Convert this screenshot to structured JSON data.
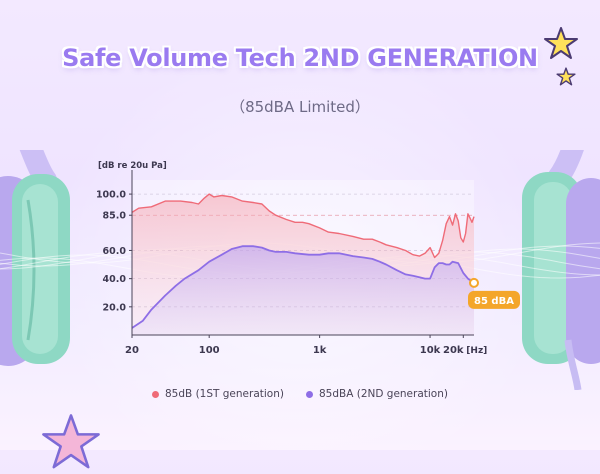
{
  "headline": "Safe Volume Tech 2ND GENERATION",
  "subheadline": "（85dBA Limited）",
  "callout": "85 dBA",
  "colors": {
    "accent_purple": "#9a7bf0",
    "series_1st": "#ef6b78",
    "series_2nd": "#8e6ee6",
    "callout_bg": "#f4a62a",
    "earcup_teal": "#8ed8c4",
    "earcup_purple": "#b7a6ee"
  },
  "icons": [
    "star-icon",
    "star-icon",
    "star-icon"
  ],
  "chart_data": {
    "type": "line",
    "ylabel": "[dB re 20u Pa]",
    "xlabel": "[Hz]",
    "x_scale": "log",
    "xlim": [
      20,
      25000
    ],
    "ylim": [
      0,
      110
    ],
    "x_ticks": [
      20,
      100,
      1000,
      10000,
      20000
    ],
    "x_tick_labels": [
      "20",
      "100",
      "1k",
      "10k",
      "20k"
    ],
    "y_ticks": [
      20,
      40,
      60,
      85,
      100
    ],
    "y_tick_labels": [
      "20.0",
      "40.0",
      "60.0",
      "85.0",
      "100.0"
    ],
    "grid": "horizontal dashed",
    "reference_line": 85,
    "legend_position": "bottom",
    "series": [
      {
        "name": "85dB (1ST generation)",
        "x": [
          20,
          23,
          30,
          40,
          55,
          70,
          80,
          90,
          100,
          110,
          130,
          160,
          200,
          250,
          300,
          350,
          400,
          500,
          600,
          700,
          800,
          1000,
          1200,
          1500,
          2000,
          2500,
          3000,
          3500,
          4000,
          5000,
          6000,
          7000,
          8000,
          9000,
          10000,
          11000,
          12000,
          13000,
          14000,
          15000,
          16000,
          17000,
          18000,
          19000,
          20000,
          21000,
          22000,
          23000,
          24000,
          25000
        ],
        "y": [
          87,
          90,
          91,
          95,
          95,
          94,
          93,
          97,
          100,
          98,
          99,
          98,
          95,
          94,
          93,
          88,
          85,
          82,
          80,
          80,
          79,
          76,
          73,
          72,
          70,
          68,
          68,
          66,
          64,
          62,
          60,
          57,
          56,
          58,
          62,
          55,
          58,
          67,
          79,
          84,
          78,
          86,
          81,
          69,
          66,
          72,
          86,
          83,
          80,
          84
        ]
      },
      {
        "name": "85dBA (2ND generation)",
        "x": [
          20,
          25,
          30,
          40,
          50,
          60,
          80,
          100,
          130,
          160,
          200,
          250,
          300,
          350,
          400,
          500,
          600,
          800,
          1000,
          1200,
          1500,
          2000,
          2500,
          3000,
          3500,
          4000,
          5000,
          6000,
          7000,
          8000,
          9000,
          10000,
          11000,
          12000,
          13000,
          14000,
          15000,
          16000,
          18000,
          20000,
          22000,
          25000
        ],
        "y": [
          5,
          10,
          18,
          28,
          35,
          40,
          46,
          52,
          57,
          61,
          63,
          63,
          62,
          60,
          59,
          59,
          58,
          57,
          57,
          58,
          58,
          56,
          55,
          54,
          52,
          50,
          46,
          43,
          42,
          41,
          40,
          40,
          48,
          51,
          51,
          50,
          50,
          52,
          51,
          44,
          40,
          37
        ]
      }
    ]
  }
}
